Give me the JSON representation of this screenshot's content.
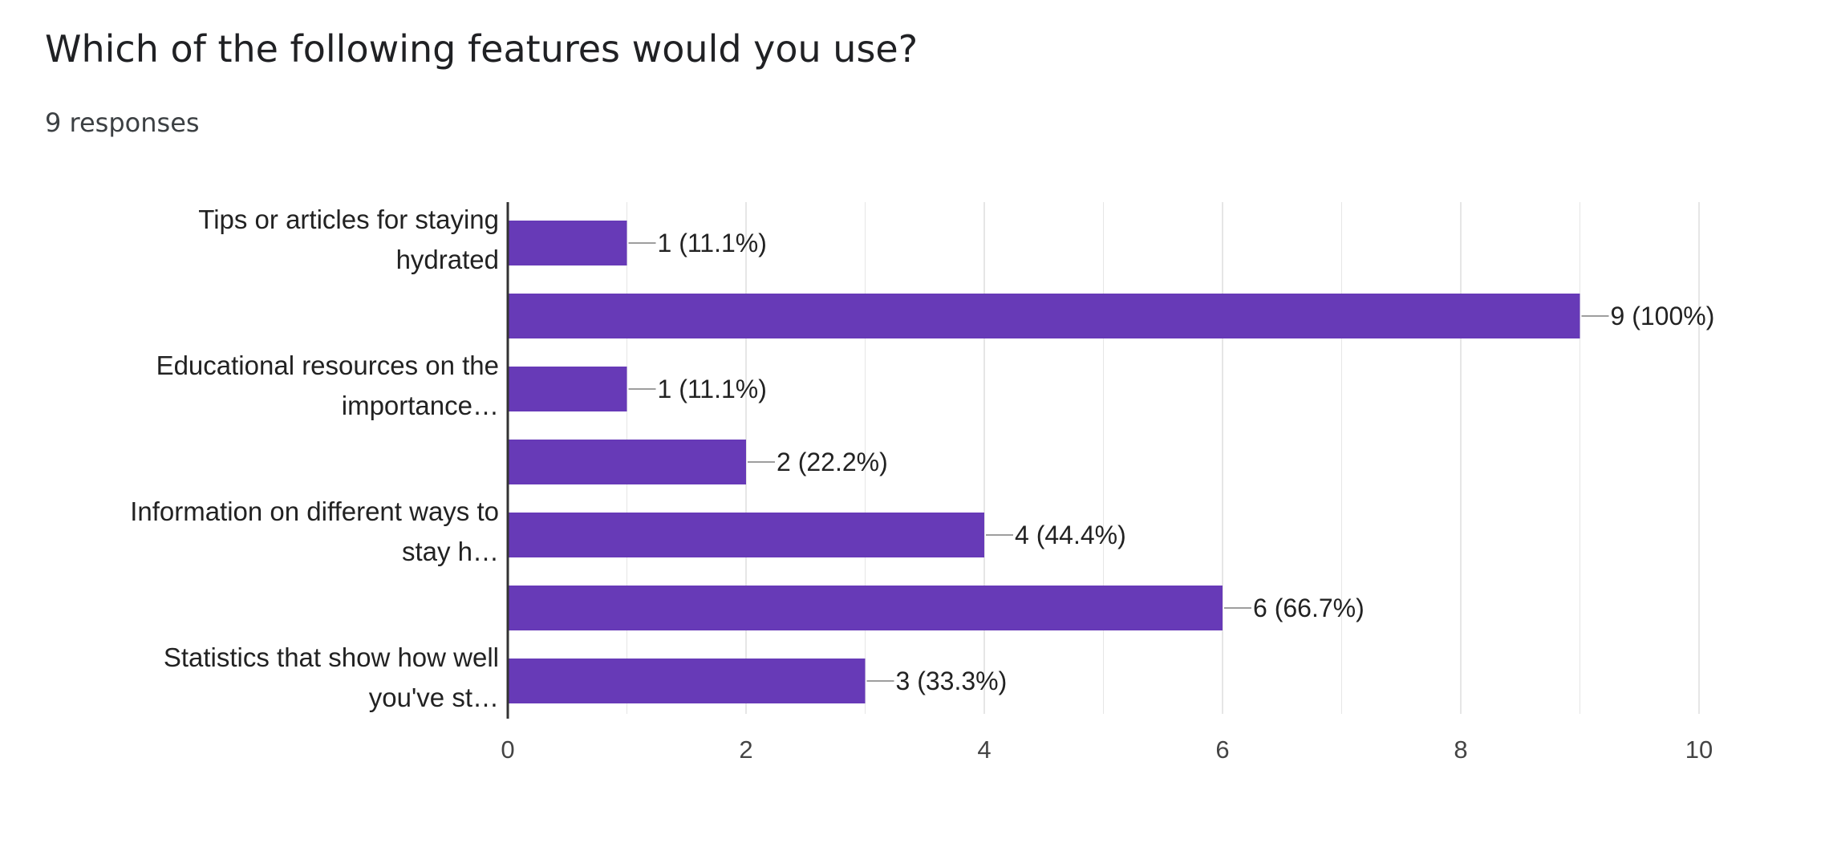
{
  "question": {
    "title": "Which of the following features would you use?",
    "responses": "9 responses"
  },
  "colors": {
    "bar": "#673AB7",
    "grid": "#e6e6e6",
    "axis": "#333333",
    "leader": "#9e9e9e"
  },
  "chart_data": {
    "type": "bar",
    "orientation": "horizontal",
    "categories": [
      [
        "Tips or articles for staying",
        "hydrated"
      ],
      [],
      [
        "Educational resources on the",
        "importance…"
      ],
      [],
      [
        "Information on different ways to",
        "stay h…"
      ],
      [],
      [
        "Statistics that show how well",
        "you've st…"
      ]
    ],
    "values": [
      1,
      9,
      1,
      2,
      4,
      6,
      3
    ],
    "data_labels": [
      "1 (11.1%)",
      "9 (100%)",
      "1 (11.1%)",
      "2 (22.2%)",
      "4 (44.4%)",
      "6 (66.7%)",
      "3 (33.3%)"
    ],
    "xlim": [
      0,
      10
    ],
    "x_ticks": [
      0,
      2,
      4,
      6,
      8,
      10
    ],
    "grid": true
  }
}
